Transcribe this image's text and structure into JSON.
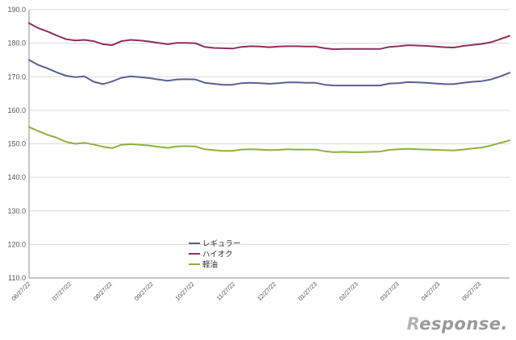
{
  "chart_data": {
    "type": "line",
    "title": "",
    "xlabel": "",
    "ylabel": "",
    "ylim": [
      110,
      190
    ],
    "y_ticks": [
      "110.0",
      "120.0",
      "130.0",
      "140.0",
      "150.0",
      "160.0",
      "170.0",
      "180.0",
      "190.0"
    ],
    "x_tick_labels": [
      "06/27/22",
      "07/27/22",
      "08/27/22",
      "09/27/22",
      "10/27/22",
      "11/27/22",
      "12/27/22",
      "01/27/23",
      "02/27/23",
      "03/27/23",
      "04/27/23",
      "05/27/23"
    ],
    "grid": "horizontal",
    "legend_position": "bottom-center",
    "series": [
      {
        "name": "レギュラー",
        "color": "#5b5f94",
        "values": [
          175.0,
          173.5,
          172.5,
          171.3,
          170.3,
          169.9,
          170.1,
          168.5,
          167.8,
          168.6,
          169.7,
          170.1,
          169.9,
          169.6,
          169.2,
          168.8,
          169.2,
          169.3,
          169.2,
          168.2,
          167.9,
          167.6,
          167.6,
          168.1,
          168.2,
          168.1,
          167.9,
          168.1,
          168.3,
          168.3,
          168.2,
          168.2,
          167.6,
          167.4,
          167.4,
          167.4,
          167.4,
          167.4,
          167.4,
          168.0,
          168.1,
          168.4,
          168.3,
          168.2,
          168.0,
          167.8,
          167.8,
          168.2,
          168.5,
          168.7,
          169.2,
          170.1,
          171.2
        ]
      },
      {
        "name": "ハイオク",
        "color": "#8e2f5c",
        "values": [
          186.0,
          184.5,
          183.5,
          182.3,
          181.2,
          180.8,
          181.0,
          180.6,
          179.7,
          179.4,
          180.6,
          181.0,
          180.8,
          180.5,
          180.1,
          179.7,
          180.1,
          180.1,
          180.0,
          178.9,
          178.6,
          178.5,
          178.4,
          178.9,
          179.1,
          179.0,
          178.8,
          179.0,
          179.1,
          179.1,
          179.0,
          179.0,
          178.5,
          178.2,
          178.3,
          178.3,
          178.3,
          178.3,
          178.3,
          178.9,
          179.1,
          179.4,
          179.3,
          179.2,
          179.0,
          178.8,
          178.7,
          179.2,
          179.5,
          179.8,
          180.3,
          181.2,
          182.2
        ]
      },
      {
        "name": "軽油",
        "color": "#8fb13d",
        "values": [
          155.0,
          153.8,
          152.7,
          151.8,
          150.6,
          150.0,
          150.3,
          149.8,
          149.1,
          148.7,
          149.7,
          149.9,
          149.7,
          149.5,
          149.1,
          148.8,
          149.2,
          149.3,
          149.2,
          148.4,
          148.1,
          147.9,
          147.9,
          148.3,
          148.4,
          148.3,
          148.1,
          148.2,
          148.4,
          148.3,
          148.3,
          148.3,
          147.8,
          147.5,
          147.6,
          147.5,
          147.5,
          147.6,
          147.7,
          148.2,
          148.4,
          148.5,
          148.4,
          148.3,
          148.2,
          148.1,
          148.0,
          148.3,
          148.6,
          148.9,
          149.5,
          150.3,
          151.0
        ]
      }
    ]
  },
  "watermark": {
    "mark": "R",
    "text": "esponse."
  }
}
